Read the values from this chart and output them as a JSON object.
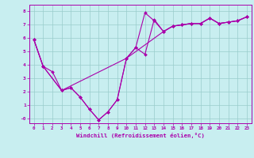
{
  "xlabel": "Windchill (Refroidissement éolien,°C)",
  "bg_color": "#c8eef0",
  "line_color": "#aa00aa",
  "grid_color": "#99cccc",
  "xlim": [
    -0.5,
    23.5
  ],
  "ylim": [
    -0.35,
    8.5
  ],
  "xticks": [
    0,
    1,
    2,
    3,
    4,
    5,
    6,
    7,
    8,
    9,
    10,
    11,
    12,
    13,
    14,
    15,
    16,
    17,
    18,
    19,
    20,
    21,
    22,
    23
  ],
  "yticks": [
    0,
    1,
    2,
    3,
    4,
    5,
    6,
    7,
    8
  ],
  "ytick_labels": [
    "-0",
    "1",
    "2",
    "3",
    "4",
    "5",
    "6",
    "7",
    "8"
  ],
  "line1_x": [
    0,
    1,
    2,
    3,
    4,
    5,
    6,
    7,
    8,
    9,
    10,
    11,
    12,
    13,
    14,
    15,
    16,
    17,
    18,
    19,
    20,
    21,
    22,
    23
  ],
  "line1_y": [
    5.9,
    3.9,
    3.5,
    2.1,
    2.3,
    1.6,
    0.7,
    -0.1,
    0.5,
    1.4,
    4.5,
    5.3,
    4.8,
    7.4,
    6.5,
    6.9,
    7.0,
    7.1,
    7.1,
    7.5,
    7.1,
    7.2,
    7.3,
    7.6
  ],
  "line2_x": [
    0,
    1,
    3,
    4,
    5,
    6,
    7,
    8,
    9,
    10,
    11,
    12,
    13,
    14,
    15,
    16,
    17,
    18,
    19,
    20,
    21,
    22,
    23
  ],
  "line2_y": [
    5.9,
    3.9,
    2.1,
    2.3,
    1.6,
    0.7,
    -0.1,
    0.5,
    1.4,
    4.5,
    5.3,
    7.9,
    7.3,
    6.5,
    6.9,
    7.0,
    7.1,
    7.1,
    7.5,
    7.1,
    7.2,
    7.3,
    7.6
  ],
  "line3_x": [
    0,
    1,
    3,
    10,
    14,
    15,
    16,
    17,
    18,
    19,
    20,
    21,
    22,
    23
  ],
  "line3_y": [
    5.9,
    3.9,
    2.1,
    4.5,
    6.5,
    6.9,
    7.0,
    7.1,
    7.1,
    7.5,
    7.1,
    7.2,
    7.3,
    7.6
  ],
  "marker_size": 2.0,
  "line_width": 0.8,
  "tick_fontsize": 4.2,
  "xlabel_fontsize": 5.2
}
